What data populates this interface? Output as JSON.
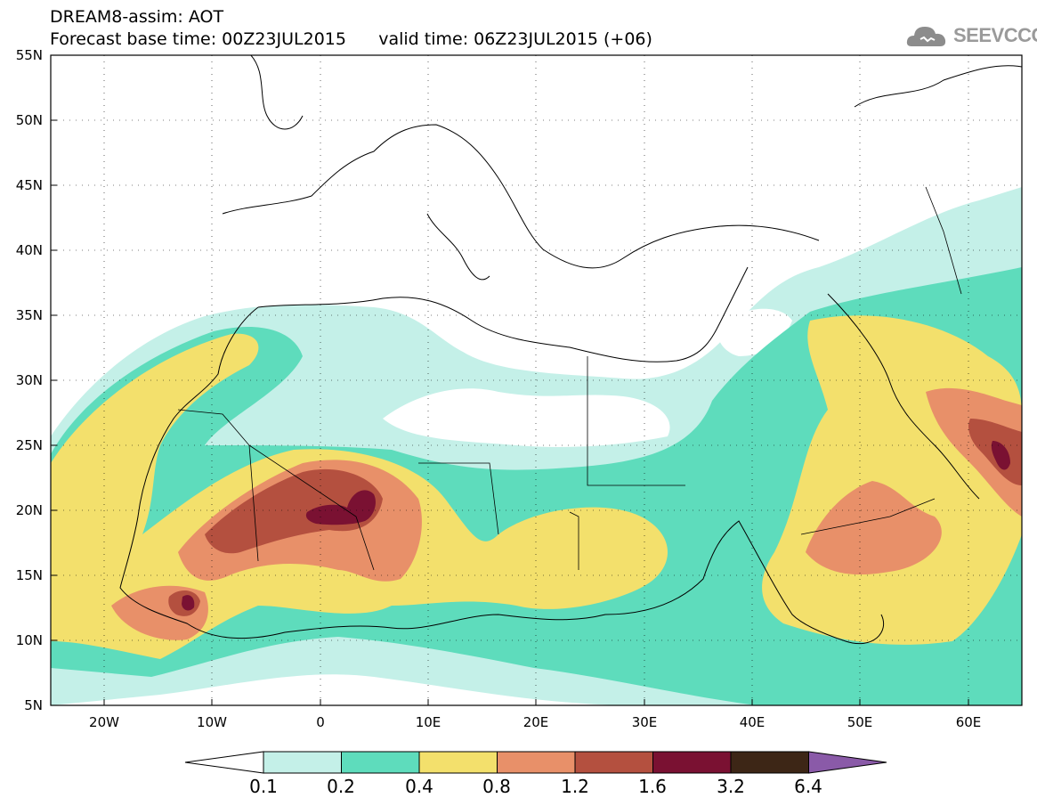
{
  "header": {
    "title": "DREAM8-assim: AOT",
    "forecast_base": "Forecast base time: 00Z23JUL2015",
    "valid_time": "valid time: 06Z23JUL2015 (+06)",
    "logo_text": "SEEVCCC"
  },
  "map": {
    "lon_range": [
      -25,
      65
    ],
    "lat_range": [
      5,
      55
    ],
    "lat_labels": [
      "55N",
      "50N",
      "45N",
      "40N",
      "35N",
      "30N",
      "25N",
      "20N",
      "15N",
      "10N",
      "5N"
    ],
    "lon_labels": [
      "20W",
      "10W",
      "0",
      "10E",
      "20E",
      "30E",
      "40E",
      "50E",
      "60E"
    ]
  },
  "colorbar": {
    "levels": [
      "0.1",
      "0.2",
      "0.4",
      "0.8",
      "1.2",
      "1.6",
      "3.2",
      "6.4"
    ],
    "colors": [
      "#c4f0e8",
      "#5edcbc",
      "#f3e06c",
      "#e89069",
      "#b4503f",
      "#7a1132",
      "#3d2616",
      "#8a5aa8"
    ]
  }
}
